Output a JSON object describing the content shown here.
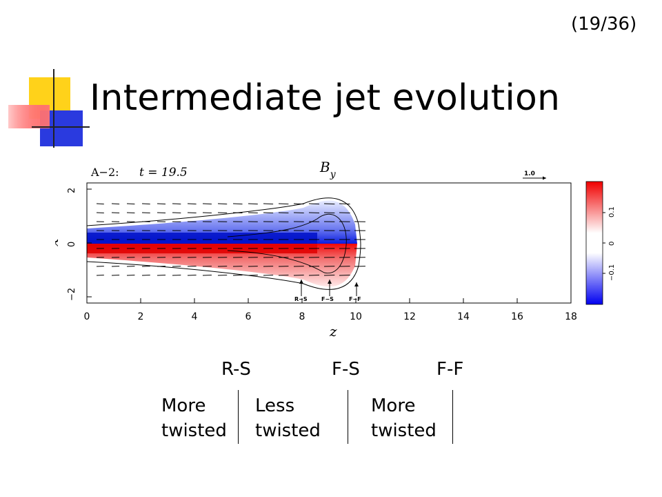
{
  "slide": {
    "page_number": "(19/36)",
    "title": "Intermediate jet evolution"
  },
  "figure": {
    "panel_label": "A−2:",
    "time_label": "t = 19.5",
    "field_label": "B",
    "field_subscript": "y",
    "vector_scale": "1.0",
    "xlabel": "z",
    "ylabel": "x",
    "x_ticks": [
      "0",
      "2",
      "4",
      "6",
      "8",
      "10",
      "12",
      "14",
      "16",
      "18"
    ],
    "y_ticks": [
      "2",
      "0",
      "−2"
    ],
    "colorbar_ticks": [
      "0.1",
      "0",
      "−0.1"
    ],
    "markers": [
      "R−S",
      "F−S",
      "F−F"
    ],
    "colors": {
      "positive": "#e81010",
      "negative": "#1428e6",
      "zero": "#ffffff"
    }
  },
  "annotations": {
    "labels": [
      "R-S",
      "F-S",
      "F-F"
    ],
    "descriptions": [
      {
        "line1": "More",
        "line2": "twisted"
      },
      {
        "line1": "Less",
        "line2": "twisted"
      },
      {
        "line1": "More",
        "line2": "twisted"
      }
    ]
  }
}
